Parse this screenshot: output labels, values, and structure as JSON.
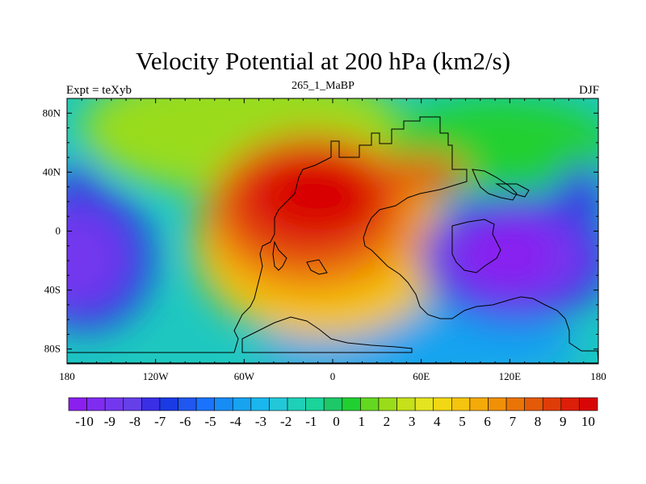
{
  "figure": {
    "title": "Velocity Potential at 200 hPa (km2/s)",
    "left_label": "Expt = teXyb",
    "center_label": "265_1_MaBP",
    "right_label": "DJF"
  },
  "map": {
    "projection": "cylindrical equidistant",
    "lon_range": [
      -180,
      180
    ],
    "lat_range": [
      -90,
      90
    ],
    "x_ticks": [
      {
        "value": -180,
        "label": "180"
      },
      {
        "value": -120,
        "label": "120W"
      },
      {
        "value": -60,
        "label": "60W"
      },
      {
        "value": 0,
        "label": "0"
      },
      {
        "value": 60,
        "label": "60E"
      },
      {
        "value": 120,
        "label": "120E"
      },
      {
        "value": 180,
        "label": "180"
      }
    ],
    "y_ticks": [
      {
        "value": 80,
        "label": "80N"
      },
      {
        "value": 40,
        "label": "40N"
      },
      {
        "value": 0,
        "label": "0"
      },
      {
        "value": -40,
        "label": "40S"
      },
      {
        "value": -80,
        "label": "80S"
      }
    ]
  },
  "chart_data": {
    "type": "heatmap",
    "title": "Velocity Potential at 200 hPa (km2/s)",
    "variable": "velocity potential",
    "units": "km2/s",
    "level": "200 hPa",
    "season": "DJF",
    "value_range": [
      -10,
      10
    ],
    "field_centers": [
      {
        "lon": -20,
        "lat": 20,
        "value": 10,
        "note": "maximum"
      },
      {
        "lon": 130,
        "lat": -15,
        "value": -10,
        "note": "minimum"
      },
      {
        "lon": -180,
        "lat": -15,
        "value": -10,
        "note": "minimum"
      }
    ],
    "colorbar": {
      "labels": [
        "-10",
        "-9",
        "-8",
        "-7",
        "-6",
        "-5",
        "-4",
        "-3",
        "-2",
        "-1",
        "0",
        "1",
        "2",
        "3",
        "4",
        "5",
        "6",
        "7",
        "8",
        "9",
        "10"
      ],
      "colors": [
        "#8a1ff0",
        "#7f2cf0",
        "#7338ee",
        "#6540e8",
        "#3a2ee6",
        "#1a3ae4",
        "#1f57f0",
        "#1a73ff",
        "#168cf5",
        "#18a3f0",
        "#1ab7ee",
        "#22c8d8",
        "#1ed0b8",
        "#1ad49a",
        "#1ec868",
        "#20d030",
        "#64d820",
        "#9adc1a",
        "#c6e01a",
        "#e4e420",
        "#f2d814",
        "#f4c40e",
        "#f4aa08",
        "#f09006",
        "#ea7406",
        "#e45a08",
        "#e03c08",
        "#dd1e08",
        "#d80606"
      ]
    }
  }
}
